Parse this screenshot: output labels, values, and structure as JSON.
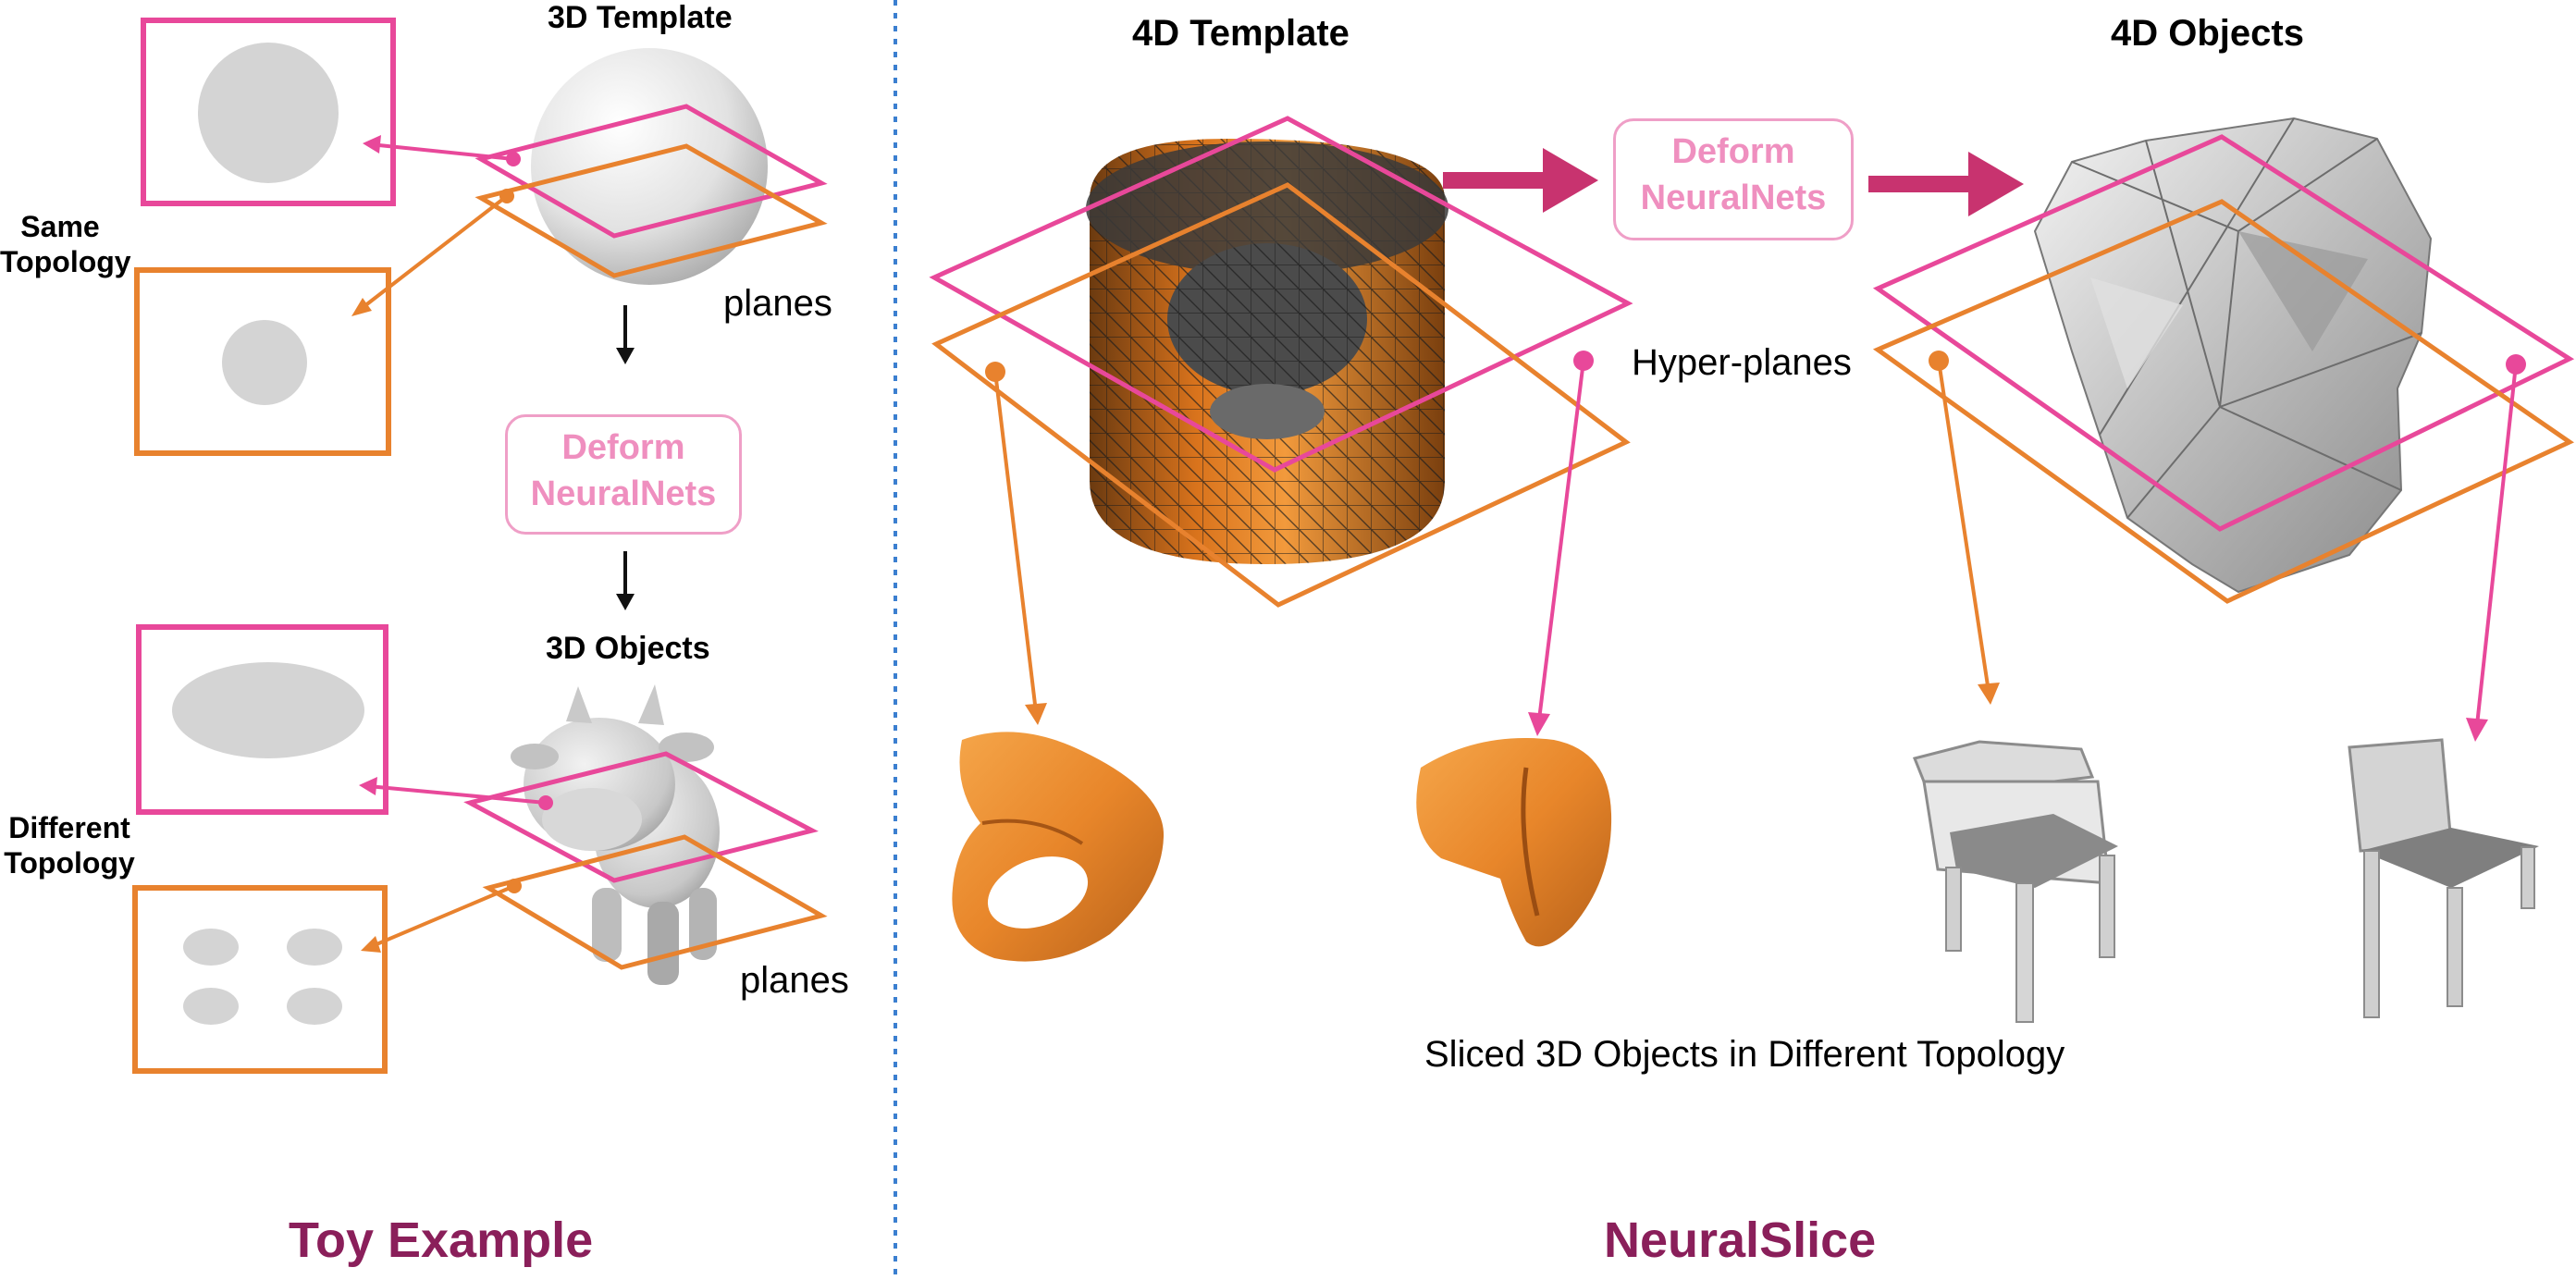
{
  "toy": {
    "template_label": "3D Template",
    "same_topology": "Same\nTopology",
    "planes_label": "planes",
    "deform_line1": "Deform",
    "deform_line2": "NeuralNets",
    "objects_label": "3D Objects",
    "different_topology": "Different\nTopology",
    "planes_label_2": "planes",
    "title": "Toy Example"
  },
  "neuralslice": {
    "template_label": "4D Template",
    "deform_line1": "Deform",
    "deform_line2": "NeuralNets",
    "objects_label": "4D Objects",
    "hyperplanes_label": "Hyper-planes",
    "sliced_label": "Sliced 3D Objects in Different Topology",
    "title": "NeuralSlice"
  },
  "colors": {
    "pink": "#e8489a",
    "orange": "#e8822e",
    "deform_pink": "#ef8fbf",
    "arrow_magenta": "#c8336f",
    "title_maroon": "#8a1f5a",
    "divider_blue": "#3b7fd0",
    "slice_gray": "#d4d4d4"
  }
}
